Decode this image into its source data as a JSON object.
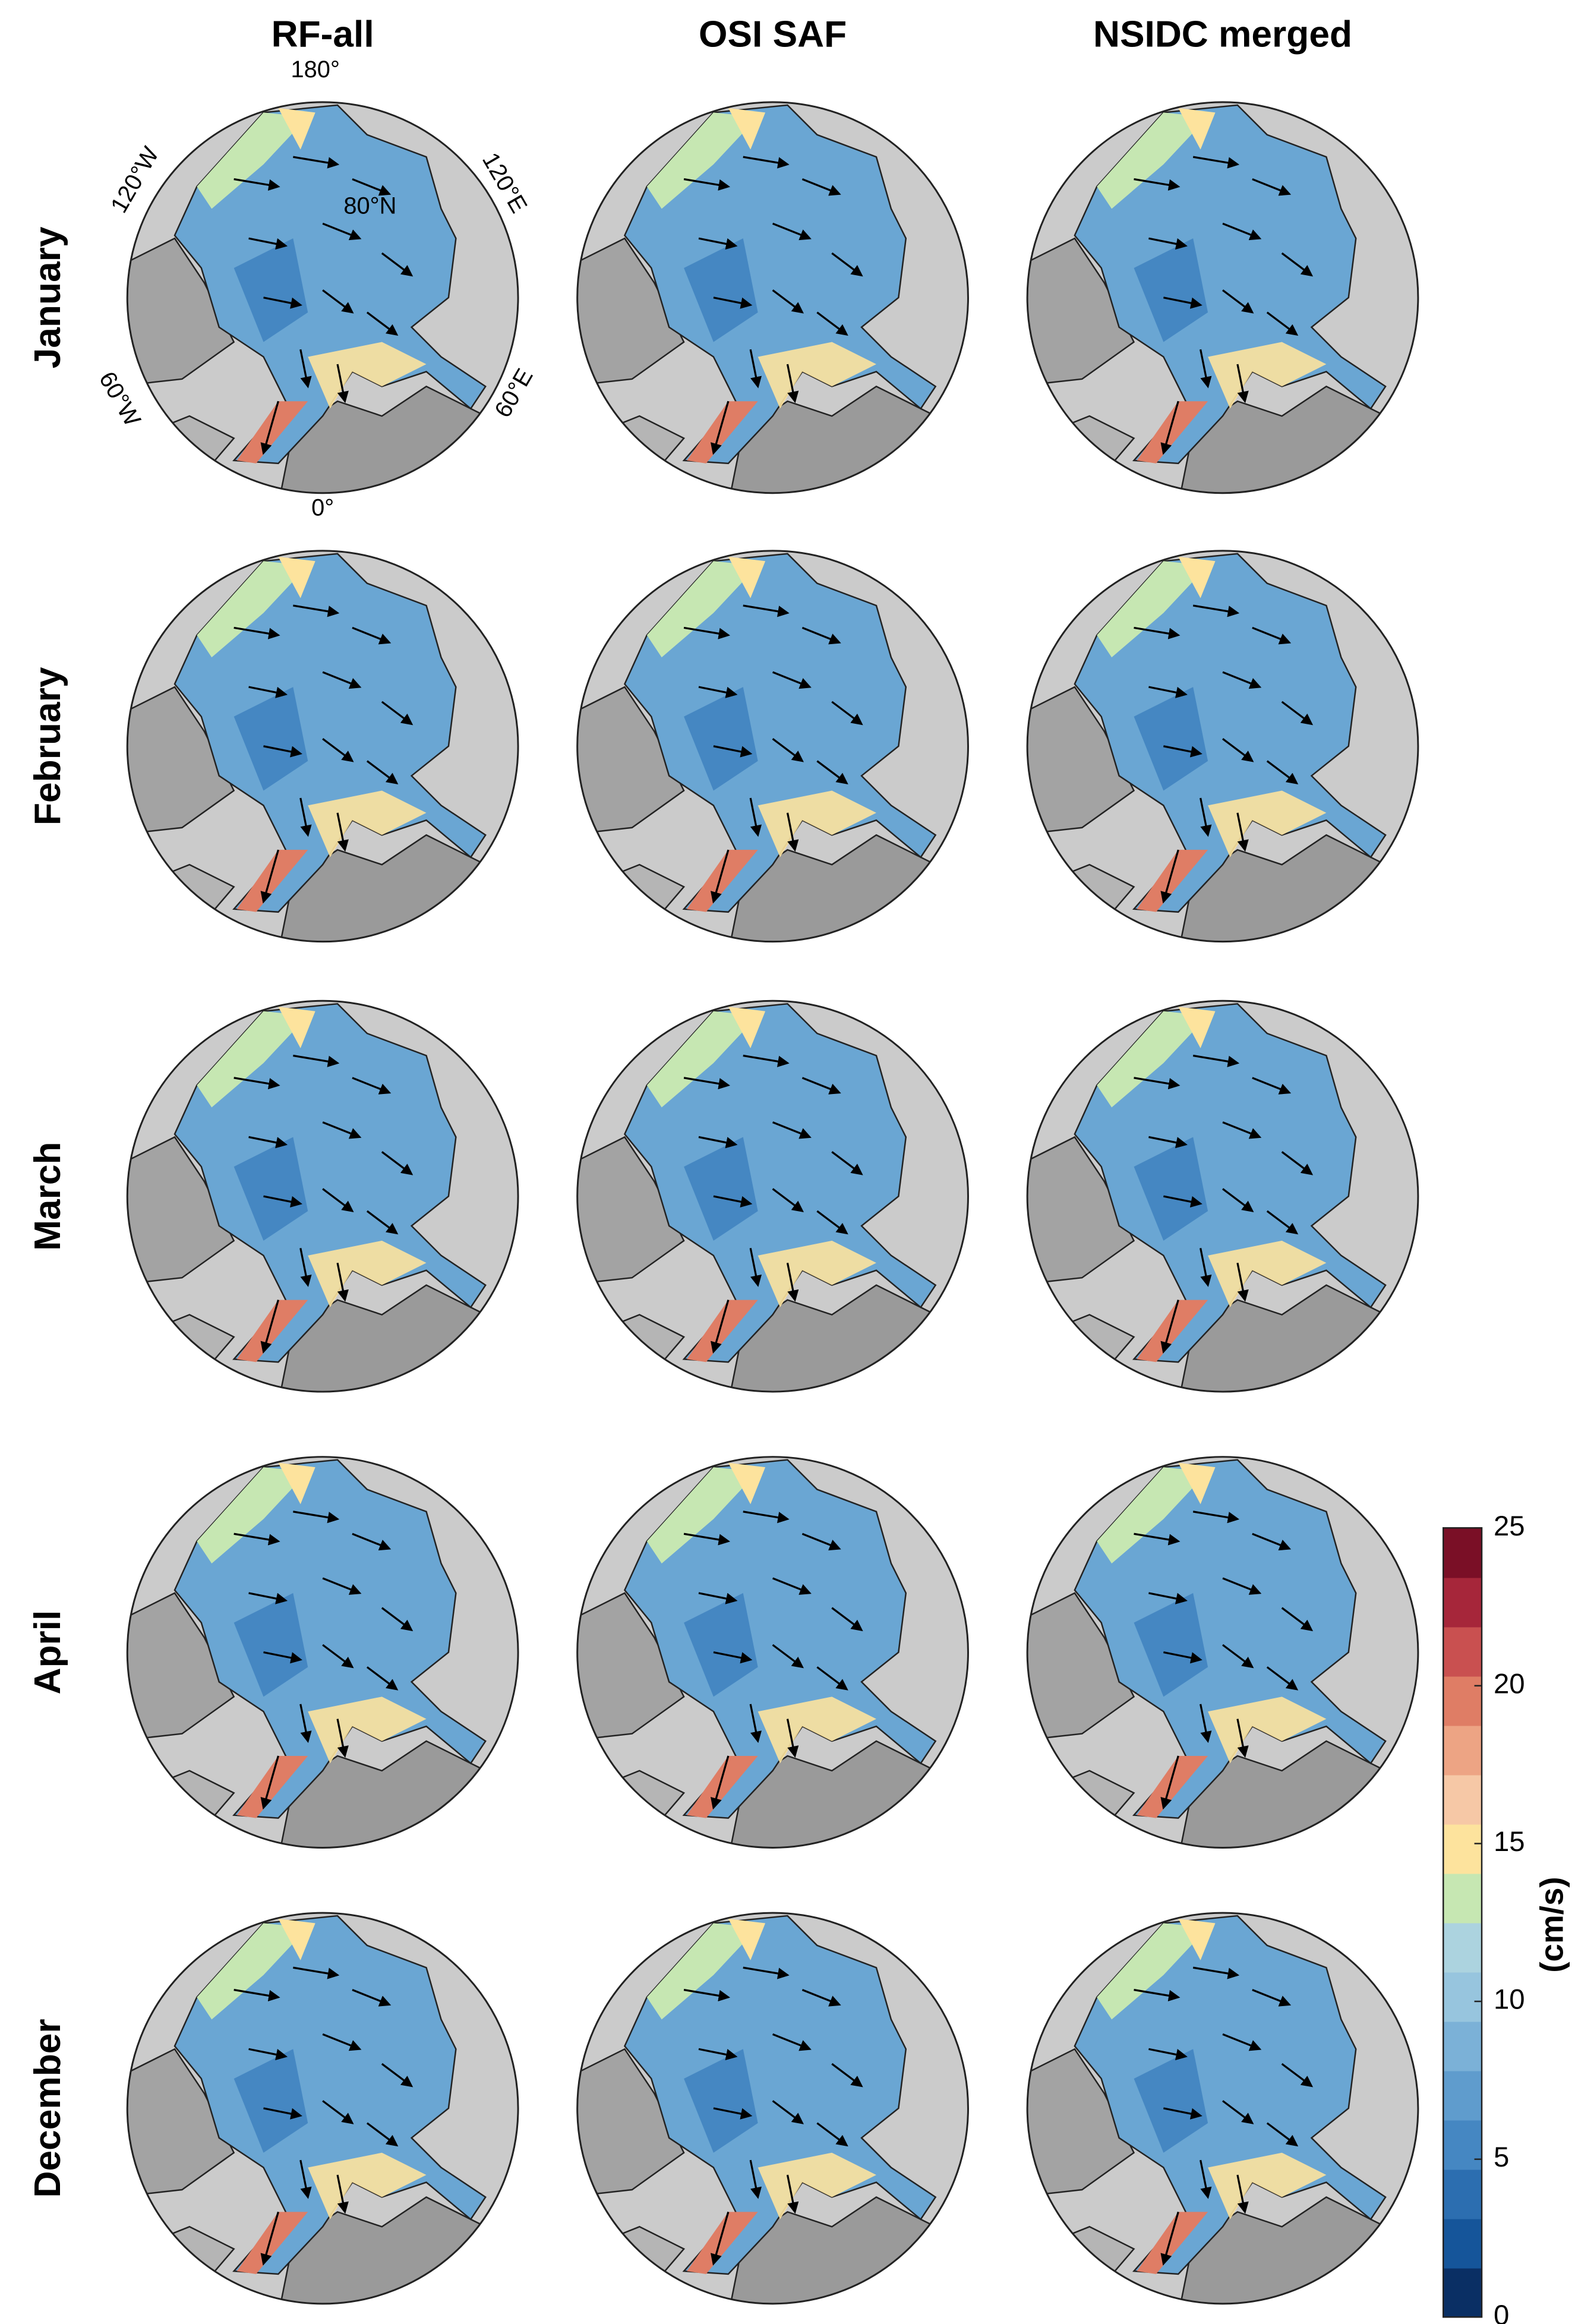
{
  "columns": [
    "RF-all",
    "OSI SAF",
    "NSIDC merged"
  ],
  "rows": [
    "January",
    "February",
    "March",
    "April",
    "December"
  ],
  "map_labels": {
    "north": "180°",
    "west": "120°W",
    "east": "120°E",
    "latitude": "80°N",
    "southwest": "60°W",
    "southeast": "60°E",
    "south": "0°"
  },
  "colorbar": {
    "label": "(cm/s)",
    "lim": [
      0,
      25
    ],
    "ticks": [
      0,
      5,
      10,
      15,
      20,
      25
    ],
    "colors": [
      "#0a2f64",
      "#15559a",
      "#2c6eb0",
      "#4587c2",
      "#5f9ccd",
      "#7bb1d7",
      "#97c5de",
      "#acd3df",
      "#c6e7b2",
      "#fde39d",
      "#f6c8a6",
      "#eda484",
      "#df7d65",
      "#c95050",
      "#a6263a",
      "#7a0f26"
    ]
  }
}
